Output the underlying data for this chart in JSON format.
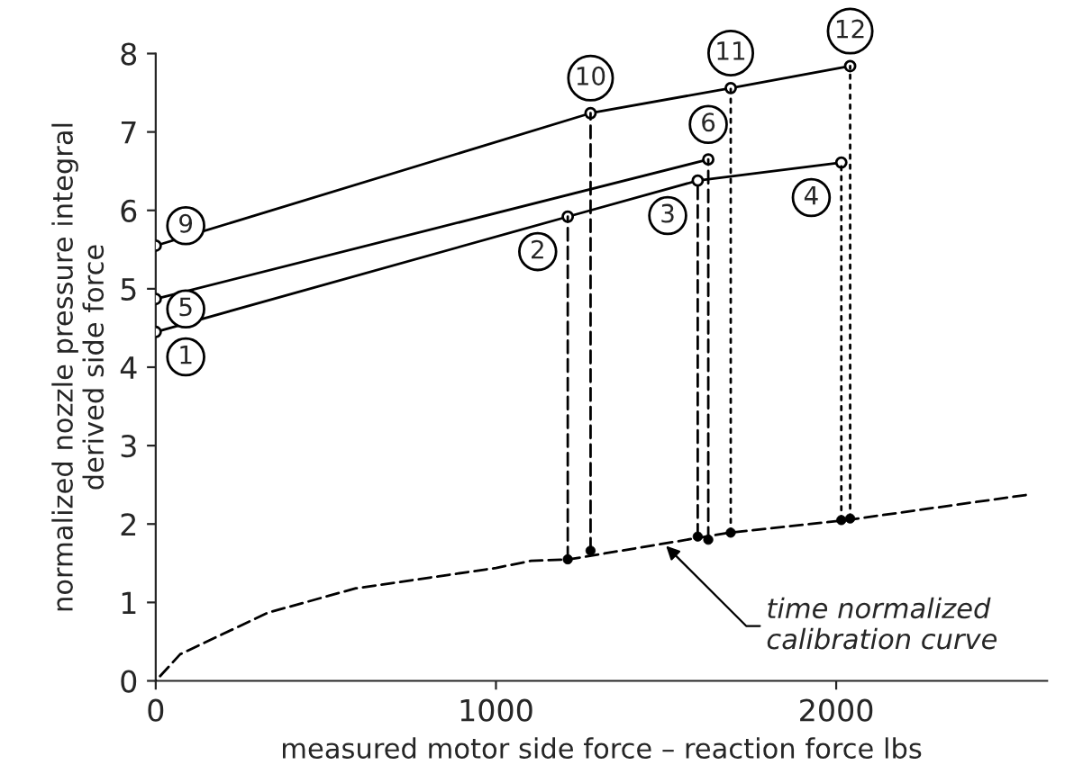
{
  "chart_data": {
    "type": "line",
    "xlabel": "measured motor side force – reaction force lbs",
    "ylabel": "normalized nozzle pressure integral\nderived side force",
    "xlim": [
      0,
      2620
    ],
    "xticks": [
      0,
      1000,
      2000
    ],
    "ylim": [
      0,
      8
    ],
    "yticks": [
      0,
      1,
      2,
      3,
      4,
      5,
      6,
      7,
      8
    ],
    "grid": false,
    "legend": false,
    "series": [
      {
        "color": "#000000",
        "marker": "circle",
        "line_style": "solid",
        "x": [
          0,
          1278,
          1690,
          2041
        ],
        "values": [
          5.55,
          7.24,
          7.56,
          7.84
        ]
      },
      {
        "color": "#000000",
        "marker": "circle",
        "line_style": "solid",
        "x": [
          0,
          1624
        ],
        "values": [
          4.87,
          6.65
        ]
      },
      {
        "color": "#000000",
        "marker": "circle",
        "line_style": "solid",
        "x": [
          0,
          1211,
          1593,
          2015
        ],
        "values": [
          4.45,
          5.92,
          6.38,
          6.61
        ]
      },
      {
        "color": "#000000",
        "marker": "none",
        "line_style": "dashed",
        "x": [
          0,
          72,
          330,
          588,
          1000,
          1103,
          1216,
          1686,
          2031,
          2557
        ],
        "values": [
          0,
          0.34,
          0.87,
          1.18,
          1.44,
          1.53,
          1.55,
          1.89,
          2.05,
          2.37
        ]
      },
      {
        "type": "scatter",
        "color": "#000000",
        "marker": "circle",
        "x": [
          1211,
          1278,
          1593,
          1624,
          1690,
          2015,
          2041
        ],
        "values": [
          1.55,
          1.66,
          1.84,
          1.8,
          1.89,
          2.05,
          2.07
        ]
      },
      {
        "color": "#000000",
        "marker": "none",
        "line_style": "dashed",
        "x": [
          1211,
          1211
        ],
        "values": [
          5.92,
          1.55
        ]
      },
      {
        "color": "#000000",
        "marker": "none",
        "line_style": "dashed",
        "x": [
          1278,
          1278
        ],
        "values": [
          7.24,
          1.66
        ]
      },
      {
        "color": "#000000",
        "marker": "none",
        "line_style": "dashed",
        "x": [
          1593,
          1593
        ],
        "values": [
          6.38,
          1.84
        ]
      },
      {
        "color": "#000000",
        "marker": "none",
        "line_style": "dashed",
        "x": [
          1624,
          1624
        ],
        "values": [
          6.65,
          1.8
        ]
      },
      {
        "color": "#000000",
        "marker": "none",
        "line_style": "dotted",
        "x": [
          1690,
          1690
        ],
        "values": [
          7.56,
          1.89
        ]
      },
      {
        "color": "#000000",
        "marker": "none",
        "line_style": "dotted",
        "x": [
          2015,
          2015
        ],
        "values": [
          6.61,
          2.05
        ]
      },
      {
        "color": "#000000",
        "marker": "none",
        "line_style": "dotted",
        "x": [
          2041,
          2041
        ],
        "values": [
          7.84,
          2.07
        ]
      }
    ],
    "annotations": [
      {
        "text": "1",
        "x": 0,
        "y": 4.45
      },
      {
        "text": "2",
        "x": 1211,
        "y": 5.92
      },
      {
        "text": "3",
        "x": 1593,
        "y": 6.38
      },
      {
        "text": "4",
        "x": 2015,
        "y": 6.61
      },
      {
        "text": "5",
        "x": 0,
        "y": 4.87
      },
      {
        "text": "6",
        "x": 1624,
        "y": 6.65
      },
      {
        "text": "9",
        "x": 0,
        "y": 5.55
      },
      {
        "text": "10",
        "x": 1278,
        "y": 7.24
      },
      {
        "text": "11",
        "x": 1690,
        "y": 7.56
      },
      {
        "text": "12",
        "x": 2041,
        "y": 7.84
      },
      {
        "text": "time normalized\ncalibration curve",
        "x": 1500,
        "y": 1.72
      }
    ]
  }
}
